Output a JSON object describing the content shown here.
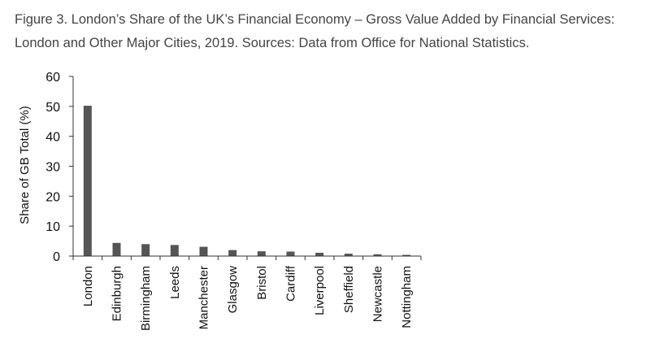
{
  "caption": {
    "text": "Figure 3. London’s Share of the UK’s Financial Economy – Gross Value Added by Financial Services: London and Other Major Cities, 2019. Sources: Data from Office for National Statistics."
  },
  "chart_data": {
    "type": "bar",
    "title": "",
    "xlabel": "",
    "ylabel": "Share of GB Total (%)",
    "ylim": [
      0,
      60
    ],
    "yticks": [
      0,
      10,
      20,
      30,
      40,
      50,
      60
    ],
    "grid": false,
    "categories": [
      "London",
      "Edinburgh",
      "Birmingham",
      "Leeds",
      "Manchester",
      "Glasgow",
      "Bristol",
      "Cardiff",
      "Liverpool",
      "Sheffield",
      "Newcastle",
      "Nottingham"
    ],
    "values": [
      50.2,
      4.4,
      4.0,
      3.7,
      3.1,
      2.0,
      1.6,
      1.5,
      1.1,
      0.8,
      0.6,
      0.4
    ],
    "bar_color": "#555555"
  }
}
